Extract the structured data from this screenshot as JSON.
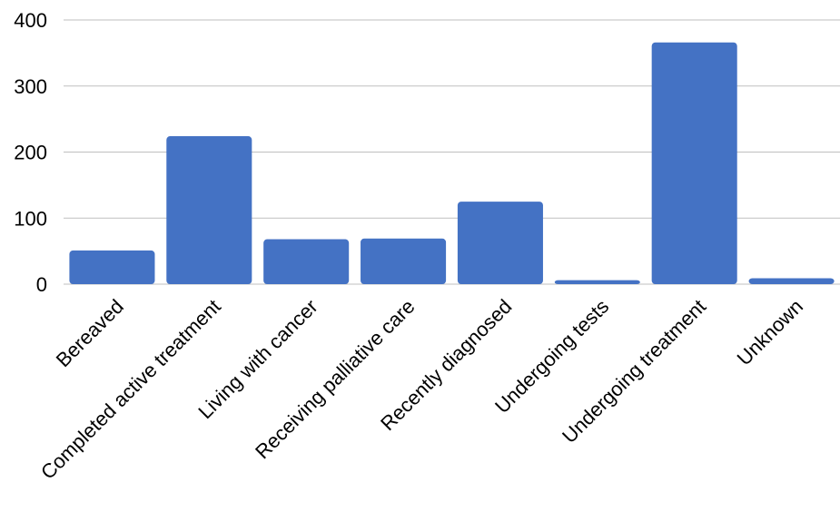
{
  "chart_data": {
    "type": "bar",
    "title": "",
    "xlabel": "",
    "ylabel": "",
    "categories": [
      "Bereaved",
      "Completed active treatment",
      "Living with cancer",
      "Receiving palliative care",
      "Recently diagnosed",
      "Undergoing tests",
      "Undergoing treatment",
      "Unknown"
    ],
    "values": [
      51,
      224,
      68,
      69,
      125,
      6,
      366,
      9
    ],
    "ylim": [
      0,
      400
    ],
    "yticks": [
      "0",
      "100",
      "200",
      "300",
      "400"
    ],
    "grid": true,
    "legend": "none",
    "colors": {
      "bar": "#4472c4",
      "grid": "#bfbfbf",
      "text": "#000000"
    }
  }
}
